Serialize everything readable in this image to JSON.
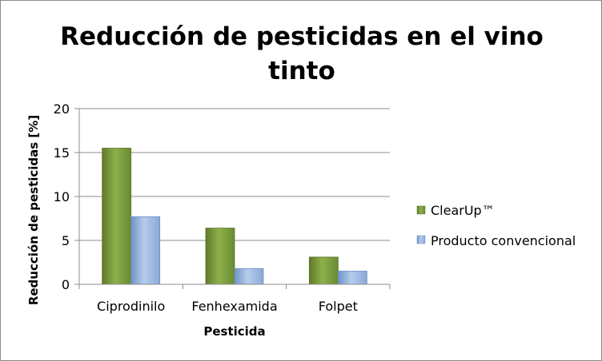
{
  "chart_data": {
    "type": "bar",
    "title_lines": [
      "Reducción de pesticidas en el vino",
      "tinto"
    ],
    "xlabel": "Pesticida",
    "ylabel": "Reducción de pesticidas [%]",
    "categories": [
      "Ciprodinilo",
      "Fenhexamida",
      "Folpet"
    ],
    "series": [
      {
        "name": "ClearUp™",
        "values": [
          15.5,
          6.4,
          3.1
        ],
        "color": "#77933c"
      },
      {
        "name": "Producto convencional",
        "values": [
          7.7,
          1.8,
          1.5
        ],
        "color": "#8eb4e3"
      }
    ],
    "ylim": [
      0,
      20
    ],
    "yticks": [
      0,
      5,
      10,
      15,
      20
    ],
    "grid": true,
    "legend_position": "right"
  }
}
